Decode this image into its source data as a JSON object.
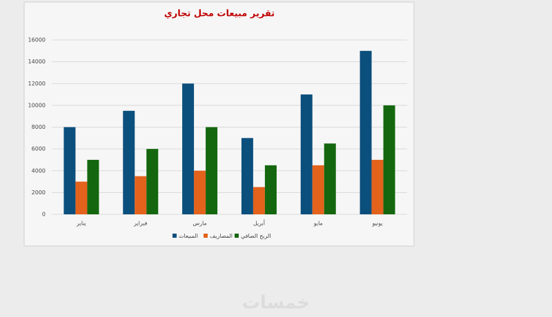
{
  "chart_data": {
    "type": "bar",
    "title": "تقرير مبيعات محل تجاري",
    "categories": [
      "يناير",
      "فبراير",
      "مارس",
      "أبريل",
      "مايو",
      "يونيو"
    ],
    "series": [
      {
        "name": "المبيعات",
        "color": "#0b4f7d",
        "values": [
          8000,
          9500,
          12000,
          7000,
          11000,
          15000
        ]
      },
      {
        "name": "المصاريف",
        "color": "#e3621c",
        "values": [
          3000,
          3500,
          4000,
          2500,
          4500,
          5000
        ]
      },
      {
        "name": "الربح الصافي",
        "color": "#14670f",
        "values": [
          5000,
          6000,
          8000,
          4500,
          6500,
          10000
        ]
      }
    ],
    "ylim": [
      0,
      16000
    ],
    "yticks": [
      0,
      2000,
      4000,
      6000,
      8000,
      10000,
      12000,
      14000,
      16000
    ],
    "grid": true,
    "legend": "bottom"
  },
  "watermark": "خمسات"
}
